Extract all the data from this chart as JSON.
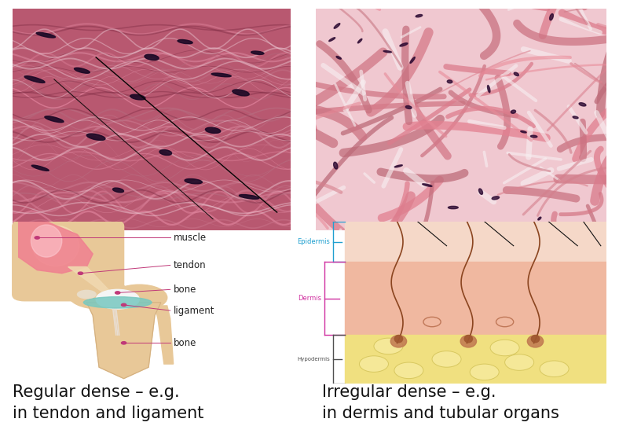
{
  "background_color": "#ffffff",
  "left_label_line1": "Regular dense – e.g.",
  "left_label_line2": "in tendon and ligament",
  "right_label_line1": "Irregular dense – e.g.",
  "right_label_line2": "in dermis and tubular organs",
  "label_fontsize": 15,
  "fig_width": 7.88,
  "fig_height": 5.42,
  "label_color": "#c03878",
  "left_bg": "#b8506a",
  "right_bg": "#e08898",
  "right_light": "#f5e8ea",
  "right_pink": "#e8707a"
}
